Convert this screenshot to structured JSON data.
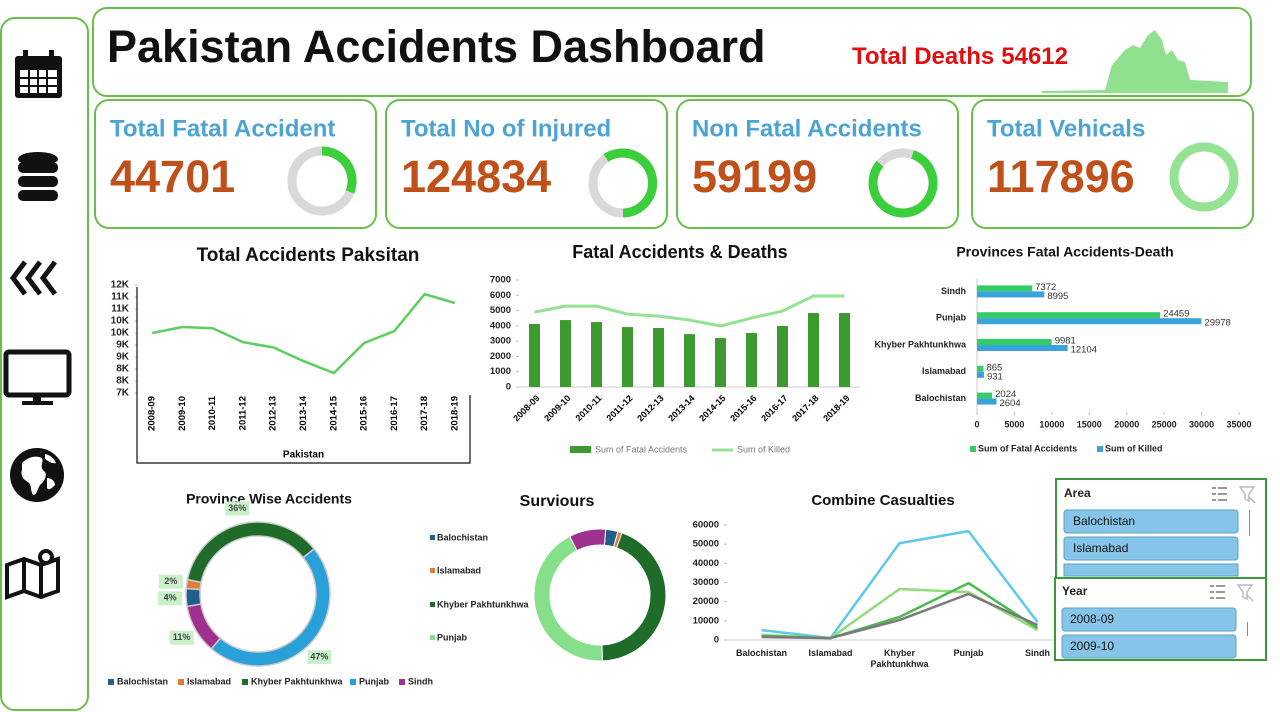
{
  "header": {
    "title": "Pakistan Accidents Dashboard",
    "total_deaths_label": "Total Deaths",
    "total_deaths": 54612
  },
  "kpis": [
    {
      "title": "Total Fatal Accident",
      "value": 44701
    },
    {
      "title": "Total No of Injured",
      "value": 124834
    },
    {
      "title": "Non Fatal Accidents",
      "value": 59199
    },
    {
      "title": "Total Vehicals",
      "value": 117896
    }
  ],
  "chart_data": [
    {
      "type": "line",
      "title": "Total Accidents Paksitan",
      "x_label": "Pakistan",
      "categories": [
        "2008-09",
        "2009-10",
        "2010-11",
        "2011-12",
        "2012-13",
        "2013-14",
        "2014-15",
        "2015-16",
        "2016-17",
        "2017-18",
        "2018-19"
      ],
      "values": [
        9500,
        9750,
        9700,
        9120,
        8900,
        8330,
        7830,
        9080,
        9580,
        11120,
        10750
      ],
      "color": "#5ccf5c",
      "ylim": [
        7000,
        11500
      ],
      "yticks": [
        {
          "value": 7000,
          "label": "7K"
        },
        {
          "value": 7500,
          "label": "8K"
        },
        {
          "value": 8000,
          "label": "8K"
        },
        {
          "value": 8500,
          "label": "9K"
        },
        {
          "value": 9000,
          "label": "9K"
        },
        {
          "value": 9500,
          "label": "10K"
        },
        {
          "value": 10000,
          "label": "10K"
        },
        {
          "value": 10500,
          "label": "11K"
        },
        {
          "value": 11000,
          "label": "11K"
        },
        {
          "value": 11500,
          "label": "12K"
        }
      ]
    },
    {
      "type": "bar",
      "title": "Fatal Accidents & Deaths",
      "categories": [
        "2008-09",
        "2009-10",
        "2010-11",
        "2011-12",
        "2012-13",
        "2013-14",
        "2014-15",
        "2015-16",
        "2016-17",
        "2017-18",
        "2018-19"
      ],
      "series": [
        {
          "name": "Sum of Fatal Accidents",
          "type": "bar",
          "color": "#3c9a2e",
          "values": [
            4120,
            4380,
            4250,
            3920,
            3860,
            3460,
            3200,
            3530,
            3990,
            4840,
            4840
          ]
        },
        {
          "name": "Sum of Killed",
          "type": "line",
          "color": "#93e393",
          "values": [
            4900,
            5290,
            5290,
            4770,
            4640,
            4380,
            3990,
            4510,
            4970,
            5950,
            5950
          ]
        }
      ],
      "ylim": [
        0,
        7000
      ],
      "yticks": [
        0,
        1000,
        2000,
        3000,
        4000,
        5000,
        6000,
        7000
      ]
    },
    {
      "type": "bar",
      "orientation": "horizontal",
      "title": "Provinces Fatal Accidents-Death",
      "categories": [
        "Sindh",
        "Punjab",
        "Khyber Pakhtunkhwa",
        "Islamabad",
        "Balochistan"
      ],
      "series": [
        {
          "name": "Sum of Fatal Accidents",
          "color": "#33cc66",
          "values": [
            7372,
            24459,
            9981,
            865,
            2024
          ]
        },
        {
          "name": "Sum of Killed",
          "color": "#3ba3dc",
          "values": [
            8995,
            29978,
            12104,
            931,
            2604
          ]
        }
      ],
      "xlim": [
        0,
        35000
      ],
      "xticks": [
        0,
        5000,
        10000,
        15000,
        20000,
        25000,
        30000,
        35000
      ]
    },
    {
      "type": "donut",
      "title": "Province Wise Accidents",
      "categories": [
        "Balochistan",
        "Islamabad",
        "Khyber Pakhtunkhwa",
        "Punjab",
        "Sindh"
      ],
      "values": [
        4,
        2,
        36,
        47,
        11
      ],
      "value_labels": [
        "4%",
        "2%",
        "36%",
        "47%",
        "11%"
      ],
      "colors": [
        "#1f5f8b",
        "#e07b39",
        "#1e6b2a",
        "#2aa0d8",
        "#a0308f"
      ]
    },
    {
      "type": "donut",
      "title": "Surviours",
      "categories": [
        "Balochistan",
        "Islamabad",
        "Khyber Pakhtunkhwa",
        "Punjab",
        null
      ],
      "values": [
        3,
        1,
        44,
        43,
        9
      ],
      "colors": [
        "#1f5f8b",
        "#e07b39",
        "#1e6b2a",
        "#86df8a",
        "#a0308f"
      ]
    },
    {
      "type": "line",
      "title": "Combine Casualties",
      "categories": [
        "Balochistan",
        "Islamabad",
        "Khyber Pakhtunkhwa",
        "Punjab",
        "Sindh"
      ],
      "series": [
        {
          "color": "#5bc8ec",
          "values": [
            5200,
            1000,
            50500,
            56800,
            9400
          ]
        },
        {
          "color": "#8fdc7a",
          "values": [
            2600,
            1000,
            26600,
            25000,
            5200
          ]
        },
        {
          "color": "#4cba4c",
          "values": [
            2100,
            1000,
            12000,
            29700,
            6200
          ]
        },
        {
          "color": "#7a7a7a",
          "values": [
            1600,
            1000,
            10400,
            24000,
            7800
          ]
        }
      ],
      "ylim": [
        0,
        60000
      ],
      "yticks": [
        0,
        10000,
        20000,
        30000,
        40000,
        50000,
        60000
      ]
    }
  ],
  "slicers": [
    {
      "title": "Area",
      "items": [
        "Balochistan",
        "Islamabad"
      ]
    },
    {
      "title": "Year",
      "items": [
        "2008-09",
        "2009-10"
      ]
    }
  ]
}
